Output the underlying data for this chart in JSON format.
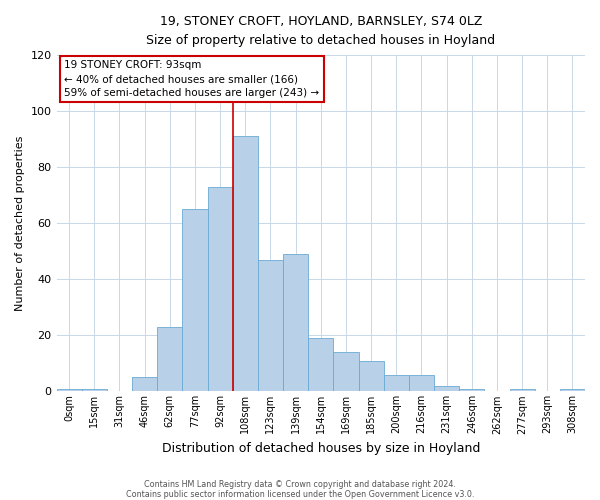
{
  "title": "19, STONEY CROFT, HOYLAND, BARNSLEY, S74 0LZ",
  "subtitle": "Size of property relative to detached houses in Hoyland",
  "xlabel": "Distribution of detached houses by size in Hoyland",
  "ylabel": "Number of detached properties",
  "bar_labels": [
    "0sqm",
    "15sqm",
    "31sqm",
    "46sqm",
    "62sqm",
    "77sqm",
    "92sqm",
    "108sqm",
    "123sqm",
    "139sqm",
    "154sqm",
    "169sqm",
    "185sqm",
    "200sqm",
    "216sqm",
    "231sqm",
    "246sqm",
    "262sqm",
    "277sqm",
    "293sqm",
    "308sqm"
  ],
  "bar_values": [
    1,
    1,
    0,
    5,
    23,
    65,
    73,
    91,
    47,
    49,
    19,
    14,
    11,
    6,
    6,
    2,
    1,
    0,
    1,
    0,
    1
  ],
  "bar_color": "#b8d0e8",
  "bar_edgecolor": "#6aaad4",
  "vline_x_index": 7,
  "vline_color": "#cc0000",
  "annotation_title": "19 STONEY CROFT: 93sqm",
  "annotation_line1": "← 40% of detached houses are smaller (166)",
  "annotation_line2": "59% of semi-detached houses are larger (243) →",
  "annotation_box_color": "#ffffff",
  "annotation_box_edgecolor": "#cc0000",
  "ylim": [
    0,
    120
  ],
  "yticks": [
    0,
    20,
    40,
    60,
    80,
    100,
    120
  ],
  "footer1": "Contains HM Land Registry data © Crown copyright and database right 2024.",
  "footer2": "Contains public sector information licensed under the Open Government Licence v3.0.",
  "background_color": "#ffffff",
  "grid_color": "#c8d8e8"
}
